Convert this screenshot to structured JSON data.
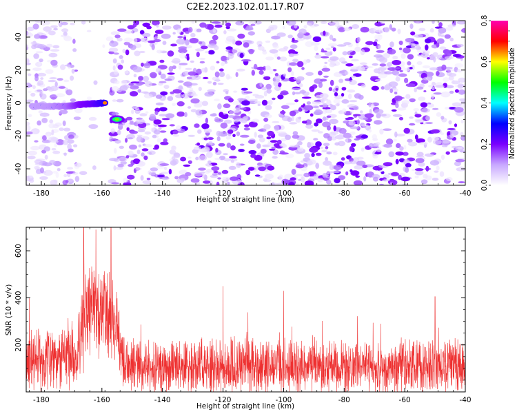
{
  "title": "C2E2.2023.102.01.17.R07",
  "chart_data": [
    {
      "type": "heatmap",
      "xlabel": "Height of straight line (km)",
      "ylabel": "Frequency (Hz)",
      "xlim": [
        -185,
        -40
      ],
      "ylim": [
        -50,
        50
      ],
      "xticks": [
        -180,
        -160,
        -140,
        -120,
        -100,
        -80,
        -60,
        -40
      ],
      "yticks": [
        -40,
        -20,
        0,
        20,
        40
      ],
      "xtick_labels": [
        "-180",
        "-160",
        "-140",
        "-120",
        "-100",
        "-80",
        "-60",
        "-40"
      ],
      "ytick_labels": [
        "-40",
        "-20",
        "0",
        "20",
        "40"
      ],
      "noise_floor_amplitude": 0.05,
      "quiet_band_km": [
        -168,
        -157
      ],
      "signal_track": [
        {
          "x": -183,
          "y": -2,
          "amp": 0.3
        },
        {
          "x": -177,
          "y": -2,
          "amp": 0.32
        },
        {
          "x": -171,
          "y": -2,
          "amp": 0.4
        },
        {
          "x": -167,
          "y": -1,
          "amp": 0.55
        },
        {
          "x": -163,
          "y": -0.5,
          "amp": 0.62
        },
        {
          "x": -159,
          "y": 0,
          "amp": 0.75
        },
        {
          "x": -155,
          "y": -10,
          "amp": 0.55
        }
      ],
      "colorbar": {
        "label": "Normalized spectral amplitude",
        "range": [
          0,
          0.8
        ],
        "ticks": [
          0.0,
          0.2,
          0.4,
          0.6,
          0.8
        ],
        "tick_labels": [
          "0.0",
          "0.2",
          "0.4",
          "0.6",
          "0.8"
        ],
        "colors": [
          "#ffffff",
          "#c8a8ff",
          "#7a00ff",
          "#0000ff",
          "#00ffff",
          "#00ff00",
          "#ffff00",
          "#ff0000",
          "#ff00b0"
        ]
      }
    },
    {
      "type": "line",
      "xlabel": "Height of straight line (km)",
      "ylabel": "SNR (10 * v/v)",
      "xlim": [
        -185,
        -40
      ],
      "ylim": [
        0,
        700
      ],
      "xticks": [
        -180,
        -160,
        -140,
        -120,
        -100,
        -80,
        -60,
        -40
      ],
      "yticks": [
        200,
        400,
        600
      ],
      "xtick_labels": [
        "-180",
        "-160",
        "-140",
        "-120",
        "-100",
        "-80",
        "-60",
        "-40"
      ],
      "ytick_labels": [
        "200",
        "400",
        "600"
      ],
      "series": [
        {
          "color": "#ee3030",
          "envelope_x": [
            -185,
            -175,
            -168,
            -166,
            -162,
            -158,
            -155,
            -153,
            -150,
            -140,
            -120,
            -100,
            -80,
            -60,
            -40
          ],
          "envelope_base": [
            130,
            140,
            160,
            330,
            340,
            320,
            280,
            110,
            110,
            105,
            110,
            110,
            110,
            105,
            110
          ],
          "envelope_spread": [
            150,
            160,
            170,
            250,
            230,
            220,
            180,
            130,
            120,
            125,
            130,
            130,
            130,
            130,
            130
          ],
          "peaks": [
            {
              "x": -166,
              "y": 700
            },
            {
              "x": -162,
              "y": 690
            },
            {
              "x": -157,
              "y": 700
            },
            {
              "x": -120,
              "y": 450
            },
            {
              "x": -100,
              "y": 430
            },
            {
              "x": -50,
              "y": 405
            }
          ]
        }
      ]
    }
  ]
}
